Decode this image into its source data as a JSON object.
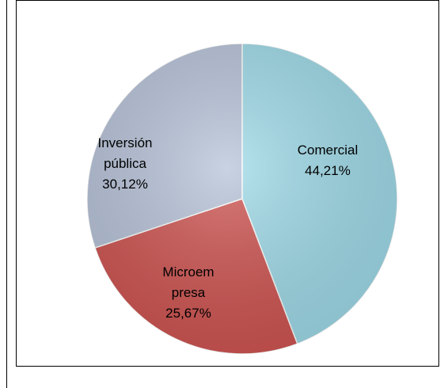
{
  "chart_data": {
    "type": "pie",
    "categories": [
      "Comercial",
      "Microempresa",
      "Inversión pública"
    ],
    "values": [
      44.21,
      25.67,
      30.12
    ],
    "value_labels": [
      "44,21%",
      "25,67%",
      "30,12%"
    ],
    "colors": [
      "#9fdbe9",
      "#cf5451",
      "#b7c3d9"
    ]
  }
}
